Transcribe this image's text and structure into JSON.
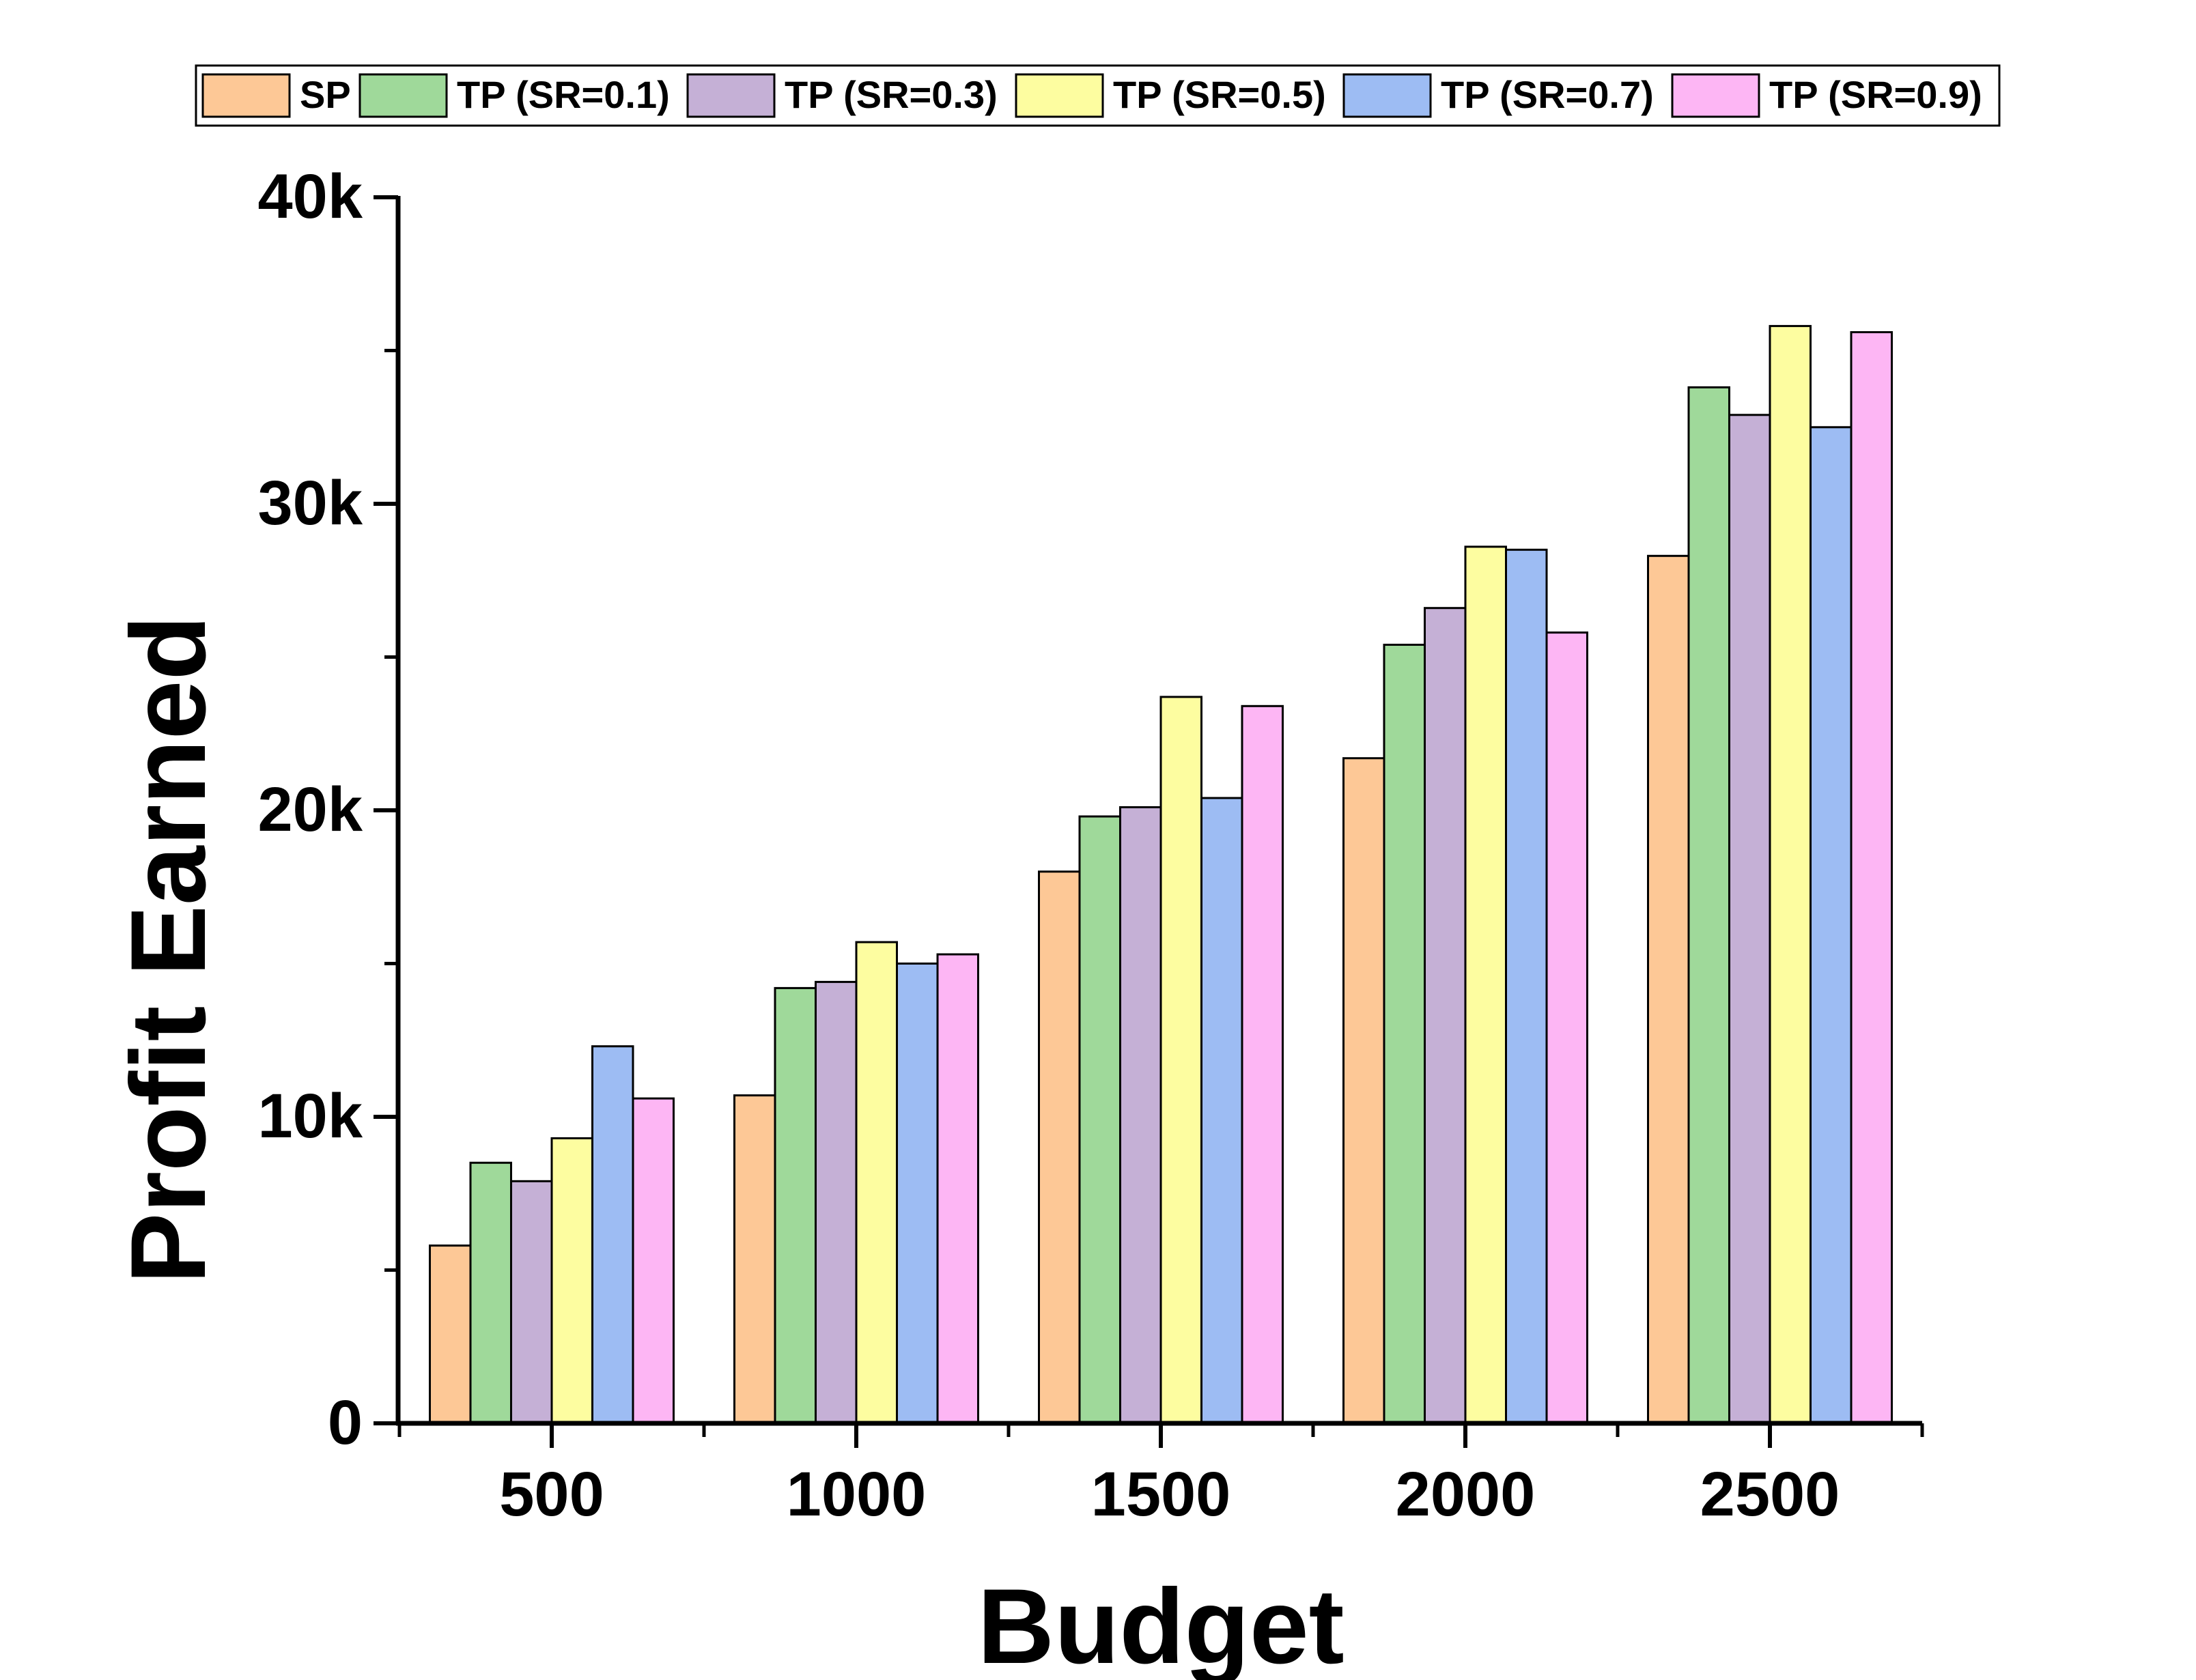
{
  "chart_data": {
    "type": "bar",
    "title": "",
    "xlabel": "Budget",
    "ylabel": "Profit Earned",
    "categories": [
      "500",
      "1000",
      "1500",
      "2000",
      "2500"
    ],
    "ylim": [
      0,
      40000
    ],
    "yticks": [
      0,
      10000,
      20000,
      30000,
      40000
    ],
    "ytick_labels": [
      "0",
      "10k",
      "20k",
      "30k",
      "40k"
    ],
    "grid": false,
    "legend_position": "top",
    "series": [
      {
        "name": "SP",
        "color": "#fdc896",
        "values": [
          5800,
          10700,
          18000,
          21700,
          28300
        ]
      },
      {
        "name": "TP (SR=0.1)",
        "color": "#9fd99a",
        "values": [
          8500,
          14200,
          19800,
          25400,
          33800
        ]
      },
      {
        "name": "TP (SR=0.3)",
        "color": "#c5b0d6",
        "values": [
          7900,
          14400,
          20100,
          26600,
          32900
        ]
      },
      {
        "name": "TP (SR=0.5)",
        "color": "#fdfda0",
        "values": [
          9300,
          15700,
          23700,
          28600,
          35800
        ]
      },
      {
        "name": "TP (SR=0.7)",
        "color": "#9dbcf3",
        "values": [
          12300,
          15000,
          20400,
          28500,
          32500
        ]
      },
      {
        "name": "TP (SR=0.9)",
        "color": "#fdb6f4",
        "values": [
          10600,
          15300,
          23400,
          25800,
          35600
        ]
      }
    ]
  }
}
